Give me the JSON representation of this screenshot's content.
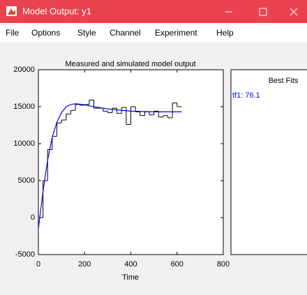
{
  "window": {
    "title": "Model Output: y1"
  },
  "menu": [
    "File",
    "Options",
    "Style",
    "Channel",
    "Experiment",
    "Help"
  ],
  "chart_data": {
    "type": "line",
    "title": "Measured and simulated model output",
    "xlabel": "Time",
    "xlim": [
      0,
      800
    ],
    "xticks": [
      0,
      200,
      400,
      600,
      800
    ],
    "ylim": [
      -5000,
      20000
    ],
    "yticks": [
      -5000,
      0,
      5000,
      10000,
      15000,
      20000
    ],
    "grid": false,
    "series": [
      {
        "style": "step",
        "color": "#000000",
        "x": [
          0,
          20,
          40,
          60,
          80,
          100,
          120,
          140,
          160,
          180,
          200,
          220,
          240,
          260,
          280,
          300,
          320,
          340,
          360,
          380,
          400,
          420,
          440,
          460,
          480,
          500,
          520,
          540,
          560,
          580,
          600
        ],
        "values": [
          0,
          5000,
          9200,
          11000,
          12800,
          13200,
          14000,
          14500,
          15300,
          15200,
          15300,
          15900,
          14800,
          14800,
          14400,
          14200,
          14800,
          14100,
          14900,
          12600,
          15000,
          14300,
          13800,
          14300,
          13900,
          14400,
          13600,
          13800,
          13500,
          15500,
          15000
        ]
      },
      {
        "style": "line",
        "color": "#0000ff",
        "x": [
          0,
          20,
          40,
          60,
          80,
          100,
          120,
          140,
          160,
          180,
          200,
          240,
          300,
          400,
          500,
          620
        ],
        "values": [
          -1500,
          3500,
          7800,
          10900,
          12900,
          14200,
          15000,
          15300,
          15400,
          15350,
          15250,
          15000,
          14700,
          14400,
          14300,
          14300
        ]
      }
    ]
  },
  "fits": {
    "title": "Best Fits",
    "entries": [
      "tf1: 76.1"
    ]
  }
}
